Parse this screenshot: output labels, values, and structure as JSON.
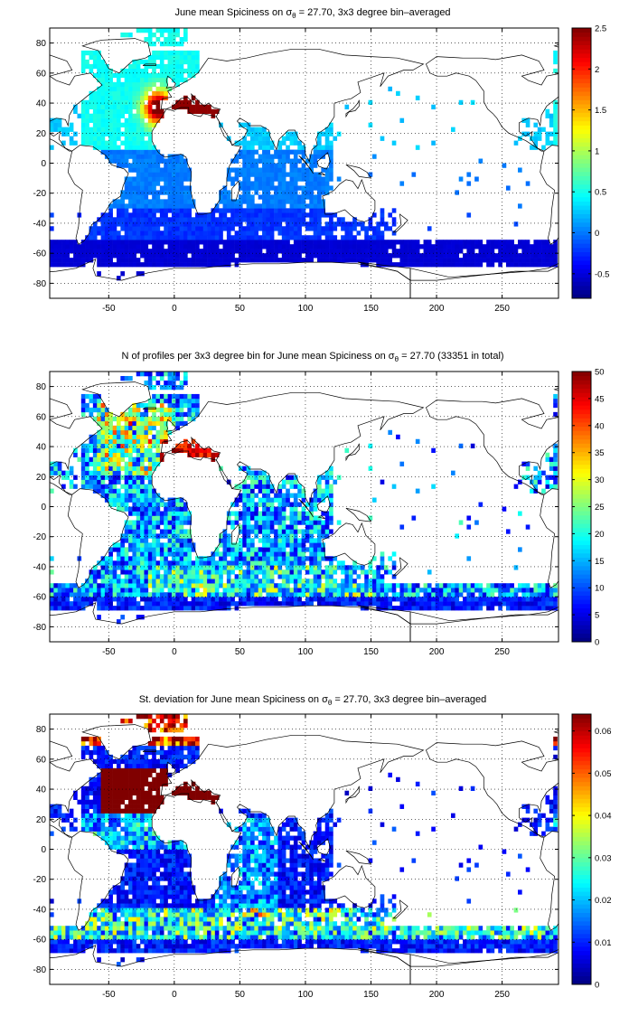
{
  "chart_data": [
    {
      "type": "heatmap",
      "title_parts": {
        "before": "June mean Spiciness on ",
        "sym": "σ",
        "sub": "θ",
        "after": " = 27.70, 3x3 degree bin–averaged"
      },
      "xlim": [
        -95,
        293
      ],
      "ylim": [
        -90,
        90
      ],
      "x_ticks": [
        -50,
        0,
        50,
        100,
        150,
        200,
        250
      ],
      "y_ticks": [
        -80,
        -60,
        -40,
        -20,
        0,
        20,
        40,
        60,
        80
      ],
      "grid": true,
      "colormap": "jet",
      "clim": [
        -0.8,
        2.5
      ],
      "colorbar_ticks": [
        -0.5,
        0,
        0.5,
        1,
        1.5,
        2,
        2.5
      ],
      "field": "mean"
    },
    {
      "type": "heatmap",
      "title_parts": {
        "before": "N of profiles per 3x3 degree bin for June mean Spiciness on ",
        "sym": "σ",
        "sub": "θ",
        "after": " = 27.70 (33351 in total)"
      },
      "xlim": [
        -95,
        293
      ],
      "ylim": [
        -90,
        90
      ],
      "x_ticks": [
        -50,
        0,
        50,
        100,
        150,
        200,
        250
      ],
      "y_ticks": [
        -80,
        -60,
        -40,
        -20,
        0,
        20,
        40,
        60,
        80
      ],
      "grid": true,
      "colormap": "jet",
      "clim": [
        0,
        50
      ],
      "colorbar_ticks": [
        0,
        5,
        10,
        15,
        20,
        25,
        30,
        35,
        40,
        45,
        50
      ],
      "field": "count"
    },
    {
      "type": "heatmap",
      "title_parts": {
        "before": "St. deviation for June mean Spiciness on ",
        "sym": "σ",
        "sub": "θ",
        "after": " = 27.70, 3x3 degree bin–averaged"
      },
      "xlim": [
        -95,
        293
      ],
      "ylim": [
        -90,
        90
      ],
      "x_ticks": [
        -50,
        0,
        50,
        100,
        150,
        200,
        250
      ],
      "y_ticks": [
        -80,
        -60,
        -40,
        -20,
        0,
        20,
        40,
        60,
        80
      ],
      "grid": true,
      "colormap": "jet",
      "clim": [
        0,
        0.064
      ],
      "colorbar_ticks": [
        0,
        0.01,
        0.02,
        0.03,
        0.04,
        0.05,
        0.06
      ],
      "field": "std"
    }
  ]
}
